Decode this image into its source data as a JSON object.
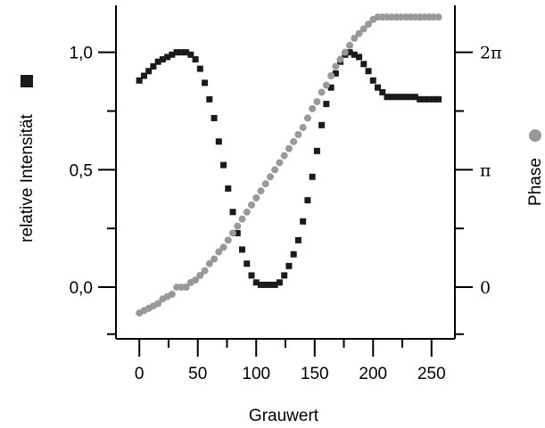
{
  "chart_data": {
    "type": "scatter",
    "xlabel": "Grauwert",
    "ylabel_left": "relative Intensität",
    "ylabel_right": "Phase",
    "xlim": [
      -20,
      270
    ],
    "x_ticks": [
      "0",
      "50",
      "100",
      "150",
      "200",
      "250"
    ],
    "ylim_left": [
      -0.22,
      1.2
    ],
    "y_left_ticks": [
      "0,0",
      "0,5",
      "1,0"
    ],
    "y_right_ticks": [
      "0",
      "π",
      "2π"
    ],
    "grid": false,
    "colors": {
      "intensity": "#1a1a1a",
      "phase": "#999999"
    },
    "series": [
      {
        "name": "relative Intensität",
        "marker": "square",
        "axis": "left",
        "x": [
          0,
          4,
          8,
          12,
          16,
          20,
          24,
          28,
          32,
          36,
          40,
          44,
          48,
          52,
          56,
          60,
          64,
          68,
          72,
          76,
          80,
          84,
          88,
          92,
          96,
          100,
          104,
          108,
          112,
          116,
          120,
          124,
          128,
          132,
          136,
          140,
          144,
          148,
          152,
          156,
          160,
          164,
          168,
          172,
          176,
          180,
          184,
          188,
          192,
          196,
          200,
          204,
          208,
          212,
          216,
          220,
          224,
          228,
          232,
          236,
          240,
          244,
          248,
          252,
          256
        ],
        "y": [
          0.88,
          0.9,
          0.92,
          0.94,
          0.96,
          0.97,
          0.98,
          0.99,
          1.0,
          1.0,
          1.0,
          0.99,
          0.97,
          0.93,
          0.87,
          0.8,
          0.72,
          0.62,
          0.52,
          0.42,
          0.32,
          0.23,
          0.16,
          0.1,
          0.05,
          0.02,
          0.01,
          0.01,
          0.01,
          0.01,
          0.02,
          0.05,
          0.09,
          0.14,
          0.2,
          0.28,
          0.37,
          0.47,
          0.58,
          0.69,
          0.78,
          0.85,
          0.91,
          0.96,
          0.99,
          1.0,
          0.99,
          0.98,
          0.95,
          0.92,
          0.88,
          0.85,
          0.83,
          0.81,
          0.81,
          0.81,
          0.81,
          0.81,
          0.81,
          0.81,
          0.8,
          0.8,
          0.8,
          0.8,
          0.8
        ]
      },
      {
        "name": "Phase",
        "marker": "circle",
        "axis": "left",
        "x": [
          0,
          4,
          8,
          12,
          16,
          20,
          24,
          28,
          32,
          36,
          40,
          44,
          48,
          52,
          56,
          60,
          64,
          68,
          72,
          76,
          80,
          84,
          88,
          92,
          96,
          100,
          104,
          108,
          112,
          116,
          120,
          124,
          128,
          132,
          136,
          140,
          144,
          148,
          152,
          156,
          160,
          164,
          168,
          172,
          176,
          180,
          184,
          188,
          192,
          196,
          200,
          204,
          208,
          212,
          216,
          220,
          224,
          228,
          232,
          236,
          240,
          244,
          248,
          252,
          256
        ],
        "y": [
          -0.11,
          -0.1,
          -0.09,
          -0.08,
          -0.07,
          -0.05,
          -0.04,
          -0.03,
          0.0,
          0.0,
          0.0,
          0.02,
          0.03,
          0.05,
          0.07,
          0.1,
          0.12,
          0.15,
          0.17,
          0.2,
          0.23,
          0.26,
          0.29,
          0.32,
          0.35,
          0.38,
          0.41,
          0.44,
          0.47,
          0.5,
          0.53,
          0.56,
          0.59,
          0.62,
          0.65,
          0.68,
          0.72,
          0.76,
          0.79,
          0.83,
          0.86,
          0.9,
          0.94,
          0.97,
          1.0,
          1.03,
          1.06,
          1.08,
          1.1,
          1.12,
          1.14,
          1.15,
          1.15,
          1.15,
          1.15,
          1.15,
          1.15,
          1.15,
          1.15,
          1.15,
          1.15,
          1.15,
          1.15,
          1.15,
          1.15
        ]
      }
    ]
  }
}
